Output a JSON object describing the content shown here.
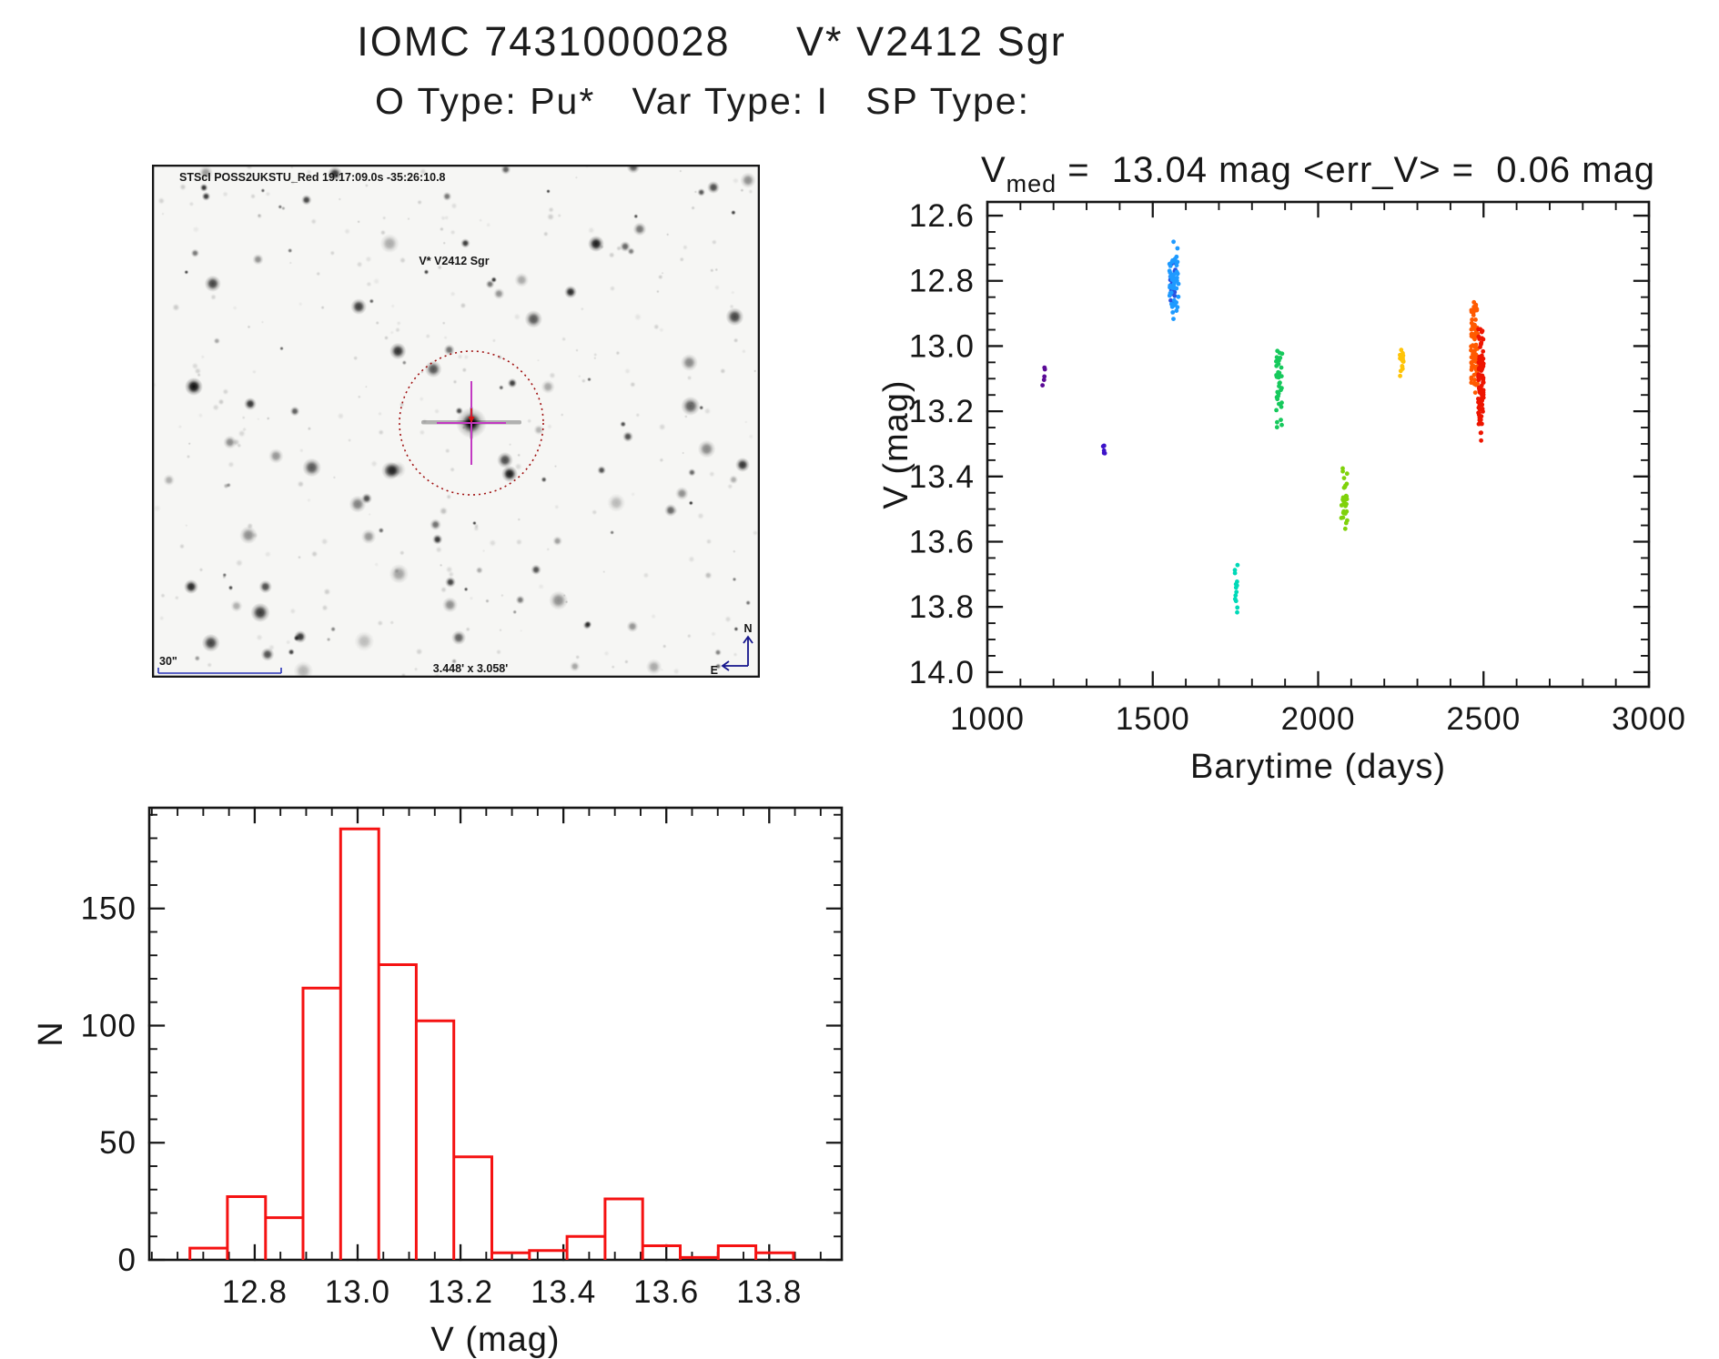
{
  "page": {
    "title": "IOMC 7431000028     V* V2412 Sgr",
    "subtitle": "O Type: Pu*   Var Type: I   SP Type:"
  },
  "finder_chart": {
    "survey_label": "STScI POSS2UKSTU_Red 19:17:09.0s -35:26:10.8",
    "target_label": "V* V2412 Sgr",
    "scale_bar_label": "30\"",
    "field_size_label": "3.448' x 3.058'",
    "compass": {
      "north": "N",
      "east": "E"
    },
    "annotation_colors": {
      "survey_text": "#2a35b8",
      "target_text": "#c32525",
      "circle": "#a01010",
      "crosshair": "#c23ac2",
      "center_arrow": "#d41414",
      "compass": "#15158c",
      "scale_bar": "#2a35b8"
    }
  },
  "chart_data": [
    {
      "id": "lightcurve",
      "type": "scatter",
      "title": {
        "lead": "V",
        "sub": "med",
        "rest": " =  13.04 mag <err_V> =  0.06 mag"
      },
      "xlabel": "Barytime (days)",
      "ylabel": "V (mag)",
      "xlim": [
        1000,
        3000
      ],
      "ylim": [
        12.558,
        14.045
      ],
      "y_inverted_mag_axis": true,
      "xtick_values": [
        1000,
        1500,
        2000,
        2500,
        3000
      ],
      "xtick_labels": [
        "1000",
        "1500",
        "2000",
        "2500",
        "3000"
      ],
      "ytick_values": [
        12.6,
        12.8,
        13.0,
        13.2,
        13.4,
        13.6,
        13.8,
        14.0
      ],
      "ytick_labels": [
        "12.6",
        "12.8",
        "13.0",
        "13.2",
        "13.4",
        "13.6",
        "13.8",
        "14.0"
      ],
      "x_minor_step": 100,
      "y_minor_step": 0.05,
      "grid": false,
      "series": [
        {
          "name": "epoch-1",
          "color": "#5a0a96",
          "seed": 11,
          "n": 5,
          "t": 1170,
          "t_halfwidth": 4,
          "v_mean": 13.085,
          "v_sigma": 0.04,
          "v_min": 13.04,
          "v_max": 13.13
        },
        {
          "name": "epoch-2",
          "color": "#3d13c9",
          "seed": 22,
          "n": 6,
          "t": 1353,
          "t_halfwidth": 4,
          "v_mean": 13.33,
          "v_sigma": 0.015,
          "v_min": 13.305,
          "v_max": 13.35
        },
        {
          "name": "epoch-3a",
          "color": "#2a52e0",
          "seed": 33,
          "n": 26,
          "t": 1561,
          "t_halfwidth": 8,
          "v_mean": 12.8,
          "v_sigma": 0.035,
          "v_min": 12.73,
          "v_max": 12.875
        },
        {
          "name": "epoch-3b",
          "color": "#1e9aff",
          "seed": 44,
          "n": 50,
          "t": 1564,
          "t_halfwidth": 14,
          "v_mean": 12.8,
          "v_sigma": 0.06,
          "v_min": 12.65,
          "v_max": 12.92
        },
        {
          "name": "epoch-4",
          "color": "#00d9b8",
          "seed": 55,
          "n": 13,
          "t": 1753,
          "t_halfwidth": 5,
          "v_mean": 13.75,
          "v_sigma": 0.05,
          "v_min": 13.67,
          "v_max": 13.835
        },
        {
          "name": "epoch-5",
          "color": "#16c95c",
          "seed": 66,
          "n": 36,
          "t": 1882,
          "t_halfwidth": 9,
          "v_mean": 13.13,
          "v_sigma": 0.065,
          "v_min": 13.01,
          "v_max": 13.26
        },
        {
          "name": "epoch-6",
          "color": "#7fd20a",
          "seed": 77,
          "n": 32,
          "t": 2079,
          "t_halfwidth": 9,
          "v_mean": 13.49,
          "v_sigma": 0.05,
          "v_min": 13.37,
          "v_max": 13.57
        },
        {
          "name": "epoch-7",
          "color": "#ffc408",
          "seed": 88,
          "n": 16,
          "t": 2252,
          "t_halfwidth": 6,
          "v_mean": 13.05,
          "v_sigma": 0.04,
          "v_min": 13.005,
          "v_max": 13.18
        },
        {
          "name": "epoch-8",
          "color": "#ff5a00",
          "seed": 99,
          "n": 80,
          "t": 2472,
          "t_halfwidth": 10,
          "v_mean": 13.0,
          "v_sigma": 0.08,
          "v_min": 12.85,
          "v_max": 13.25
        },
        {
          "name": "epoch-9",
          "color": "#ee1500",
          "seed": 111,
          "n": 90,
          "t": 2492,
          "t_halfwidth": 8,
          "v_mean": 13.11,
          "v_sigma": 0.08,
          "v_min": 12.945,
          "v_max": 13.3
        }
      ]
    },
    {
      "id": "histogram",
      "type": "bar",
      "title": "",
      "xlabel": "V (mag)",
      "ylabel": "N",
      "xlim": [
        12.595,
        13.941
      ],
      "ylim": [
        0,
        193
      ],
      "xtick_values": [
        12.8,
        13.0,
        13.2,
        13.4,
        13.6,
        13.8
      ],
      "xtick_labels": [
        "12.8",
        "13.0",
        "13.2",
        "13.4",
        "13.6",
        "13.8"
      ],
      "ytick_values": [
        0,
        50,
        100,
        150
      ],
      "ytick_labels": [
        "0",
        "50",
        "100",
        "150"
      ],
      "x_minor_step": 0.05,
      "y_minor_step": 10,
      "grid": false,
      "bin_edges": [
        12.674,
        12.747,
        12.821,
        12.894,
        12.967,
        13.041,
        13.114,
        13.187,
        13.261,
        13.334,
        13.407,
        13.481,
        13.554,
        13.627,
        13.701,
        13.774,
        13.847
      ],
      "counts": [
        5,
        27,
        18,
        116,
        184,
        126,
        102,
        44,
        3,
        4,
        10,
        26,
        6,
        1,
        6,
        3
      ],
      "outline_color": "#f51212"
    }
  ]
}
